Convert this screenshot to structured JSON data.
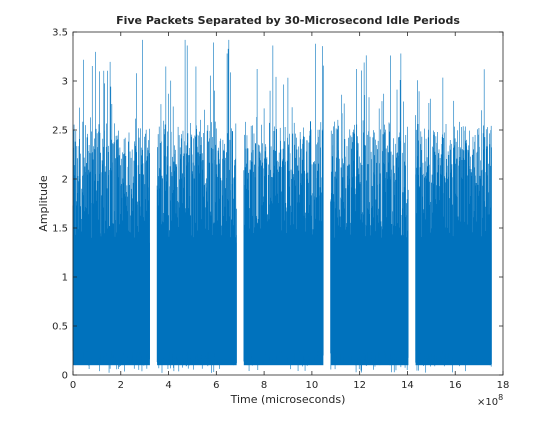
{
  "chart_data": {
    "type": "line",
    "title": "Five Packets Separated by 30-Microsecond Idle Periods",
    "xlabel": "Time (microseconds)",
    "ylabel": "Amplitude",
    "xlim": [
      0,
      18
    ],
    "ylim": [
      0,
      3.5
    ],
    "x_exponent_label": "×10",
    "x_exponent": "8",
    "x_ticks": [
      "0",
      "2",
      "4",
      "6",
      "8",
      "10",
      "12",
      "14",
      "16",
      "18"
    ],
    "y_ticks": [
      "0",
      "0.5",
      "1",
      "1.5",
      "2",
      "2.5",
      "3",
      "3.5"
    ],
    "grid": false,
    "series_color": "#0072BD",
    "packets": [
      {
        "start": 0.0,
        "end": 3.22,
        "typical_peak": 2.5,
        "max_peak": 3.42
      },
      {
        "start": 3.52,
        "end": 6.85,
        "typical_peak": 2.5,
        "max_peak": 3.42
      },
      {
        "start": 7.15,
        "end": 10.48,
        "typical_peak": 2.5,
        "max_peak": 3.38
      },
      {
        "start": 10.78,
        "end": 14.04,
        "typical_peak": 2.5,
        "max_peak": 3.28
      },
      {
        "start": 14.34,
        "end": 17.52,
        "typical_peak": 2.5,
        "max_peak": 3.12
      }
    ]
  }
}
